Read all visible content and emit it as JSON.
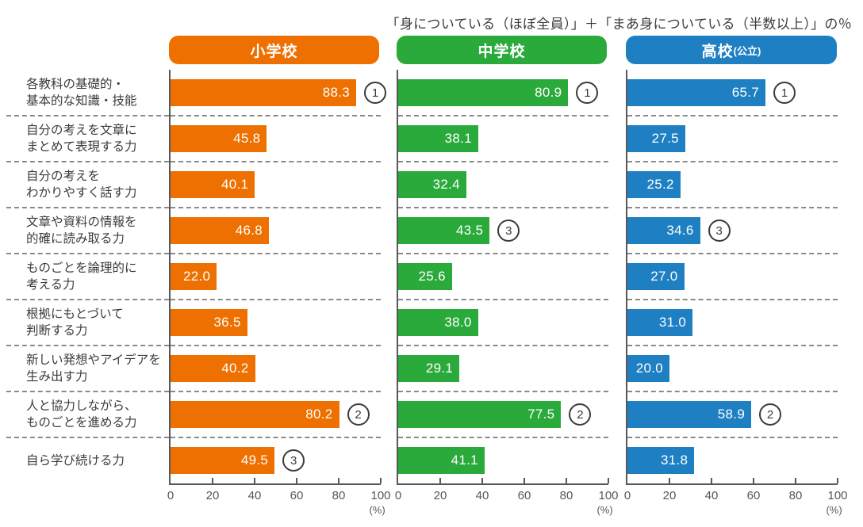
{
  "title": "「身についている（ほぼ全員）」＋「まあ身についている（半数以上）」の％",
  "header": {
    "pills": [
      {
        "label": "小学校",
        "note": "",
        "color": "#ed7000"
      },
      {
        "label": "中学校",
        "note": "",
        "color": "#2baa3c"
      },
      {
        "label": "高校",
        "note": "(公立)",
        "color": "#1e80c3"
      }
    ]
  },
  "chart_data": {
    "type": "bar",
    "orientation": "horizontal",
    "title": "「身についている（ほぼ全員）」＋「まあ身についている（半数以上）」の％",
    "categories": [
      "各教科の基礎的・\n基本的な知識・技能",
      "自分の考えを文章に\nまとめて表現する力",
      "自分の考えを\nわかりやすく話す力",
      "文章や資料の情報を\n的確に読み取る力",
      "ものごとを論理的に\n考える力",
      "根拠にもとづいて\n判断する力",
      "新しい発想やアイデアを\n生み出す力",
      "人と協力しながら、\nものごとを進める力",
      "自ら学び続ける力"
    ],
    "series": [
      {
        "name": "小学校",
        "color": "#ed7000",
        "values": [
          "88.3",
          "45.8",
          "40.1",
          "46.8",
          "22.0",
          "36.5",
          "40.2",
          "80.2",
          "49.5"
        ],
        "ranks": [
          1,
          null,
          null,
          null,
          null,
          null,
          null,
          2,
          3
        ]
      },
      {
        "name": "中学校",
        "color": "#2baa3c",
        "values": [
          "80.9",
          "38.1",
          "32.4",
          "43.5",
          "25.6",
          "38.0",
          "29.1",
          "77.5",
          "41.1"
        ],
        "ranks": [
          1,
          null,
          null,
          3,
          null,
          null,
          null,
          2,
          null
        ]
      },
      {
        "name": "高校（公立）",
        "color": "#1e80c3",
        "values": [
          "65.7",
          "27.5",
          "25.2",
          "34.6",
          "27.0",
          "31.0",
          "20.0",
          "58.9",
          "31.8"
        ],
        "ranks": [
          1,
          null,
          null,
          3,
          null,
          null,
          null,
          2,
          null
        ]
      }
    ],
    "xlim": [
      0,
      100
    ],
    "xticks": [
      0,
      20,
      40,
      60,
      80,
      100
    ],
    "x_unit": "(%)",
    "grid": false,
    "legend_position": "top"
  }
}
